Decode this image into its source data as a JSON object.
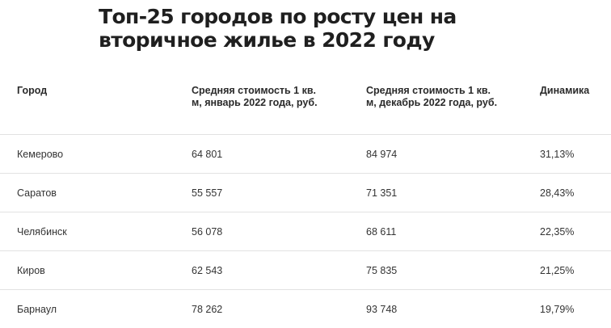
{
  "title": "Топ-25 городов по росту цен на вторичное жилье в 2022 году",
  "table": {
    "headers": [
      "Город",
      "Средняя стоимость 1 кв. м, январь 2022 года, руб.",
      "Средняя стоимость 1 кв. м, декабрь 2022 года, руб.",
      "Динамика"
    ],
    "rows": [
      [
        "Кемерово",
        "64 801",
        "84 974",
        "31,13%"
      ],
      [
        "Саратов",
        "55 557",
        "71 351",
        "28,43%"
      ],
      [
        "Челябинск",
        "56 078",
        "68 611",
        "22,35%"
      ],
      [
        "Киров",
        "62 543",
        "75 835",
        "21,25%"
      ],
      [
        "Барнаул",
        "78 262",
        "93 748",
        "19,79%"
      ]
    ]
  }
}
